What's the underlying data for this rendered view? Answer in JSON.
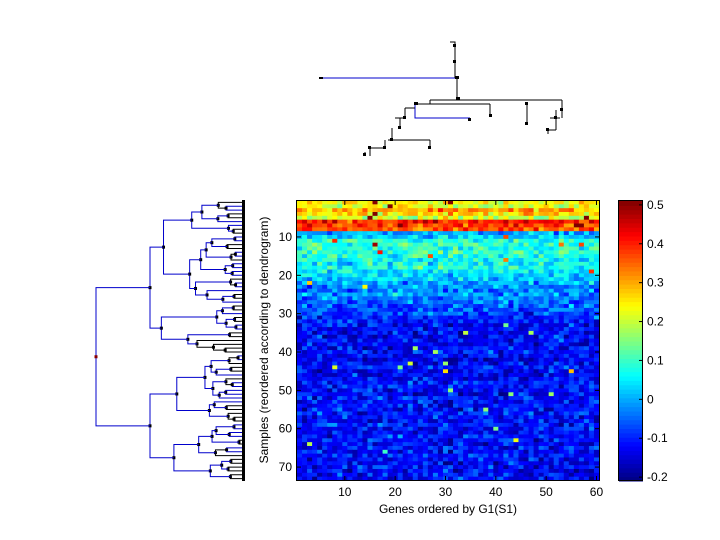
{
  "chart_data": {
    "type": "heatmap",
    "xlabel": "Genes ordered by G1(S1)",
    "ylabel": "Samples (reordered according to dendrogram)",
    "n_cols": 60,
    "n_rows": 73,
    "xticks": [
      10,
      20,
      30,
      40,
      50,
      60
    ],
    "yticks": [
      10,
      20,
      30,
      40,
      50,
      60,
      70
    ],
    "clim": [
      -0.21,
      0.51
    ],
    "colorbar_ticks": [
      0.5,
      0.4,
      0.3,
      0.2,
      0.1,
      0,
      -0.1,
      -0.2
    ],
    "colormap": "jet",
    "row_means": [
      0.24,
      0.22,
      0.3,
      0.27,
      0.2,
      0.4,
      0.38,
      0.36,
      0.0,
      0.02,
      0.07,
      0.09,
      0.08,
      0.1,
      0.08,
      0.07,
      0.06,
      0.08,
      0.05,
      0.03,
      0.02,
      0.0,
      -0.02,
      -0.03,
      -0.01,
      -0.04,
      -0.05,
      -0.05,
      -0.06,
      -0.07,
      -0.1,
      -0.11,
      -0.12,
      -0.12,
      -0.13,
      -0.12,
      -0.11,
      -0.13,
      -0.12,
      -0.11,
      -0.12,
      -0.13,
      -0.12,
      -0.11,
      -0.12,
      -0.13,
      -0.12,
      -0.1,
      -0.11,
      -0.12,
      -0.13,
      -0.1,
      -0.12,
      -0.11,
      -0.12,
      -0.1,
      -0.11,
      -0.12,
      -0.1,
      -0.11,
      -0.12,
      -0.1,
      -0.11,
      -0.12,
      -0.11,
      -0.12,
      -0.1,
      -0.11,
      -0.12,
      -0.11,
      -0.12,
      -0.11,
      -0.12
    ],
    "cell_noise": 0.05,
    "left_dendrogram_split_row": 40
  }
}
